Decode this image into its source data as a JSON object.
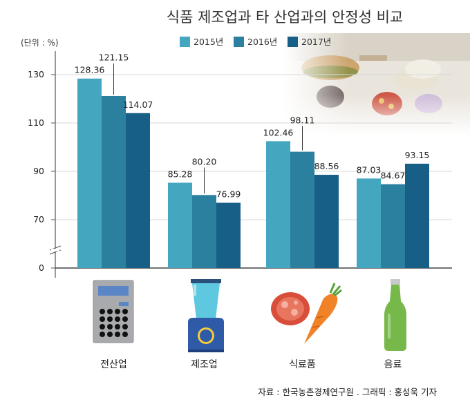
{
  "chart_data": {
    "type": "bar",
    "title": "식품 제조업과 타 산업과의 안정성 비교",
    "unit_label": "(단위 : %)",
    "categories": [
      "전산업",
      "제조업",
      "식료품",
      "음료"
    ],
    "category_icons": [
      "calculator-icon",
      "blender-icon",
      "meat-and-carrot-icon",
      "bottle-icon"
    ],
    "series": [
      {
        "name": "2015년",
        "color": "#44a6bf",
        "values": [
          128.36,
          85.28,
          102.46,
          87.03
        ],
        "labels": [
          "128.36",
          "85.28",
          "102.46",
          "87.03"
        ]
      },
      {
        "name": "2016년",
        "color": "#2b80a0",
        "values": [
          121.15,
          80.2,
          98.11,
          84.67
        ],
        "labels": [
          "121.15",
          "80.20",
          "98.11",
          "84.67"
        ]
      },
      {
        "name": "2017년",
        "color": "#175f86",
        "values": [
          114.07,
          76.99,
          88.56,
          93.15
        ],
        "labels": [
          "114.07",
          "76.99",
          "88.56",
          "93.15"
        ]
      }
    ],
    "y_ticks": [
      0,
      70,
      90,
      110,
      130
    ],
    "y_axis_note": "broken axis between 0 and 70",
    "grid": true,
    "legend_position": "top"
  },
  "source_text": "자료 : 한국농촌경제연구원 . 그래픽 : 홍성욱 기자",
  "decoration": "faded food photo (burgers, tomato, onion) in top-right corner"
}
